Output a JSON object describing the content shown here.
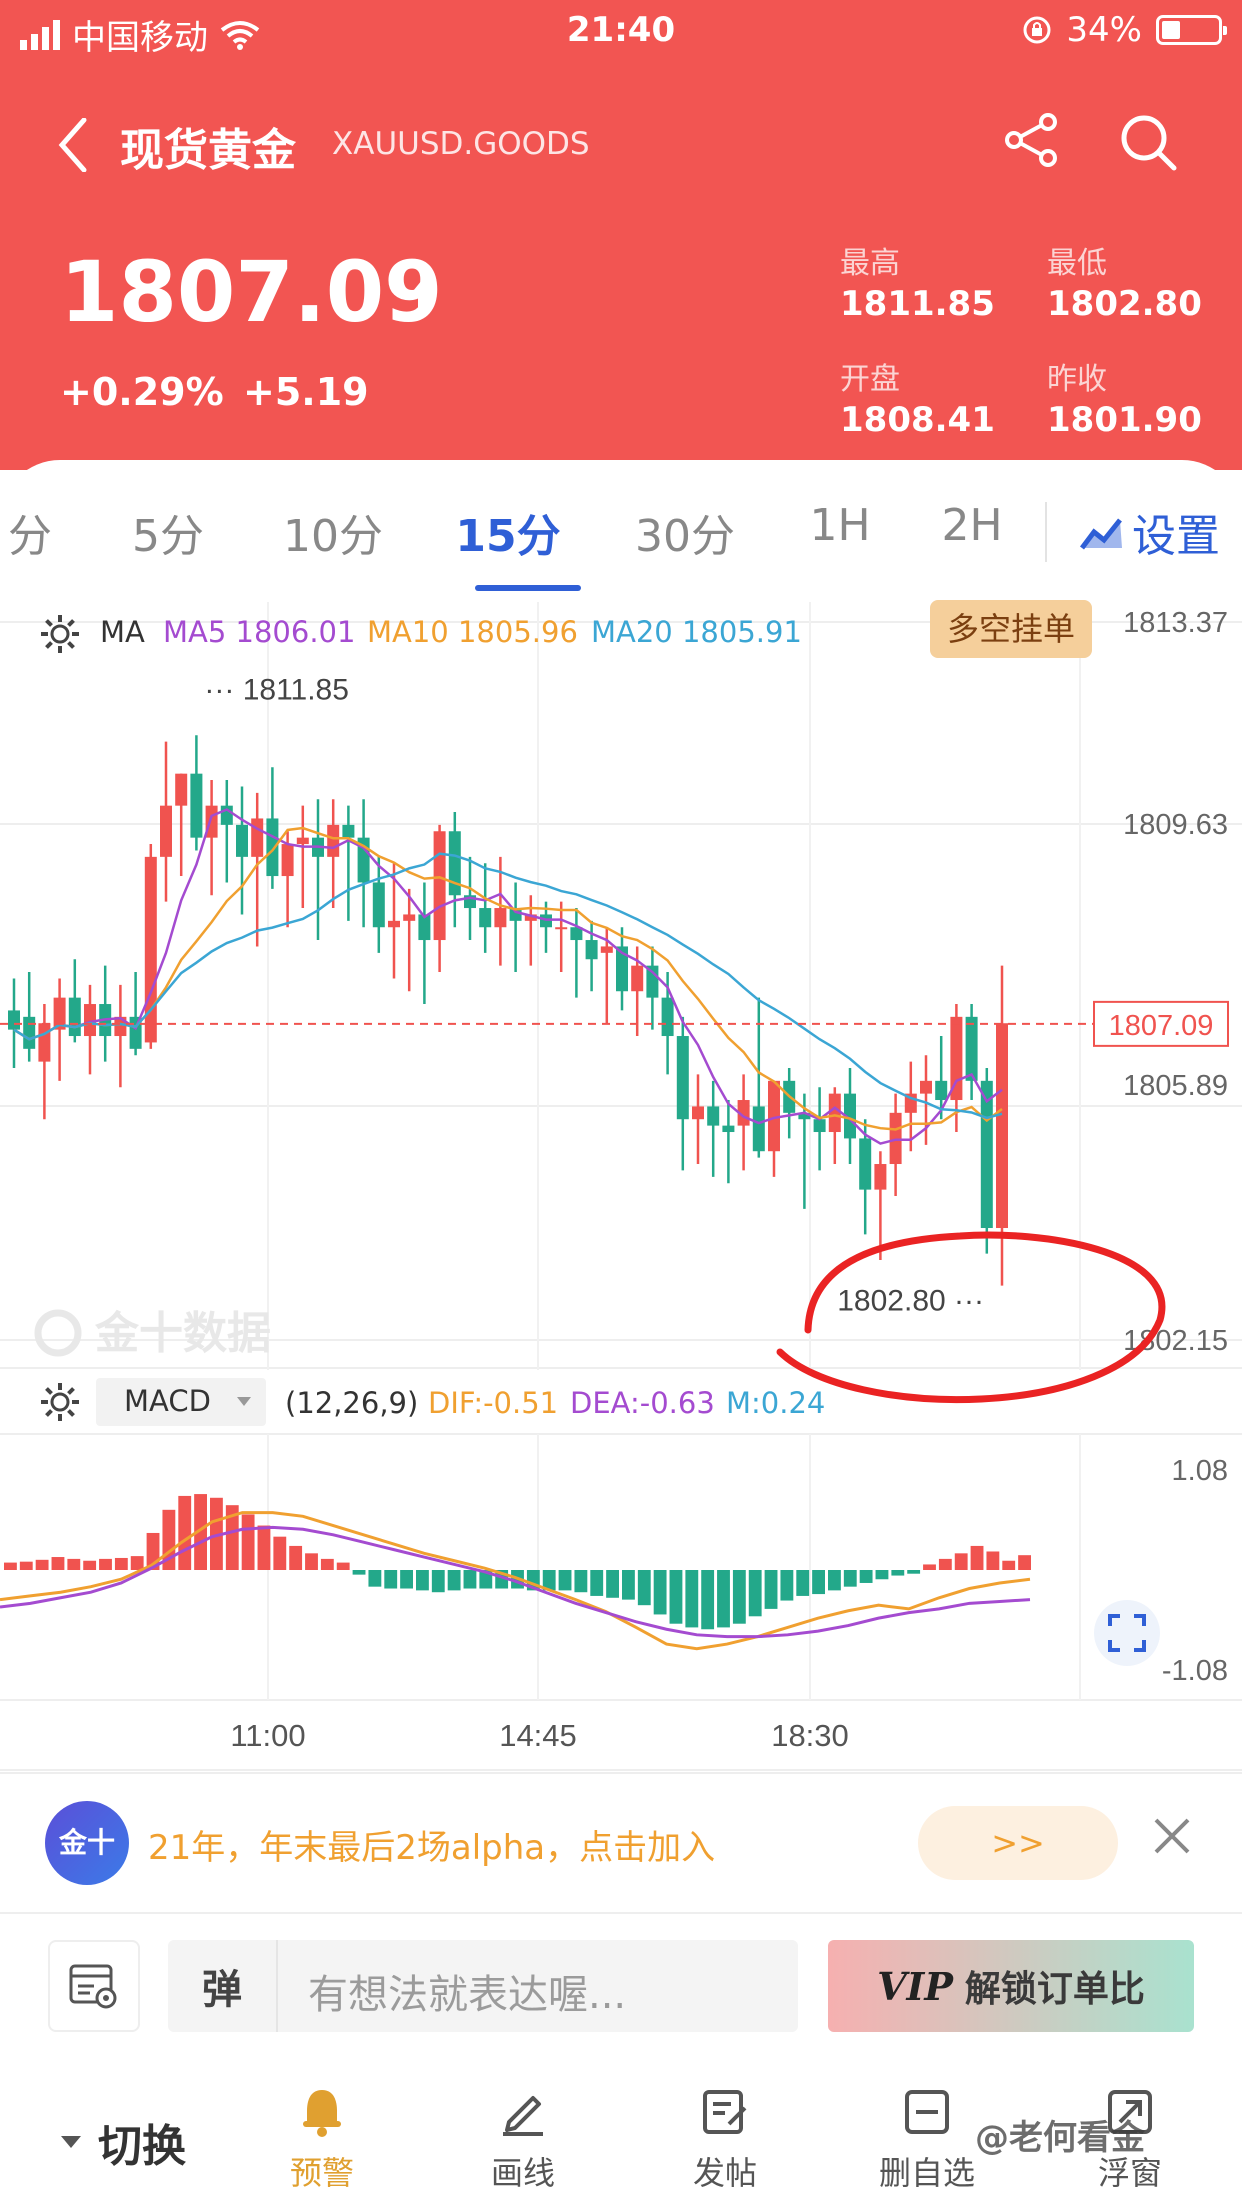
{
  "status_bar": {
    "carrier": "中国移动",
    "time": "21:40",
    "battery": "34%"
  },
  "header": {
    "title": "现货黄金",
    "code": "XAUUSD.GOODS",
    "price": "1807.09",
    "change_pct": "+0.29%",
    "change_abs": "+5.19",
    "stats": [
      {
        "label": "最高",
        "value": "1811.85"
      },
      {
        "label": "最低",
        "value": "1802.80"
      },
      {
        "label": "开盘",
        "value": "1808.41"
      },
      {
        "label": "昨收",
        "value": "1801.90"
      }
    ],
    "colors": {
      "background": "#f25552",
      "text": "#ffffff"
    }
  },
  "tabs": [
    {
      "label": "分"
    },
    {
      "label": "5分"
    },
    {
      "label": "10分"
    },
    {
      "label": "15分",
      "active": true
    },
    {
      "label": "30分"
    },
    {
      "label": "1H"
    },
    {
      "label": "2H"
    }
  ],
  "settings_label": "设置",
  "ma_legend": {
    "name": "MA",
    "ma5": "MA5 1806.01",
    "ma10": "MA10 1805.96",
    "ma20": "MA20 1805.91"
  },
  "order_button": "多空挂单",
  "price_axis": [
    "1813.37",
    "1809.63",
    "1805.89",
    "1802.15"
  ],
  "current_price_tag": "1807.09",
  "high_label": "1811.85",
  "low_label": "1802.80",
  "chart_watermark": "金十数据",
  "macd_legend": {
    "name": "MACD",
    "params": "(12,26,9)",
    "dif": "DIF:-0.51",
    "dea": "DEA:-0.63",
    "m": "M:0.24"
  },
  "macd_axis": [
    "1.08",
    "-1.08"
  ],
  "time_axis": [
    "11:00",
    "14:45",
    "18:30"
  ],
  "colors": {
    "up": "#f0534f",
    "down": "#23a88a",
    "ma5": "#a44bd0",
    "ma10": "#f0a030",
    "ma20": "#3ba6d4",
    "accent": "#2f5fd6"
  },
  "chart_data": [
    {
      "type": "candlestick",
      "title": "",
      "ylim": [
        1802.15,
        1813.37
      ],
      "y_ticks": [
        1813.37,
        1809.63,
        1805.89,
        1802.15
      ],
      "x_ticks": [
        "11:00",
        "14:45",
        "18:30"
      ],
      "last_price": 1807.09,
      "period_high": 1811.85,
      "period_low": 1802.8,
      "ohlc": [
        [
          1807.3,
          1807.8,
          1806.4,
          1807.0
        ],
        [
          1807.2,
          1807.9,
          1806.5,
          1806.7
        ],
        [
          1806.5,
          1807.4,
          1805.6,
          1807.1
        ],
        [
          1807.0,
          1807.8,
          1806.2,
          1807.5
        ],
        [
          1807.5,
          1808.1,
          1806.8,
          1806.9
        ],
        [
          1806.9,
          1807.7,
          1806.3,
          1807.4
        ],
        [
          1807.4,
          1808.0,
          1806.5,
          1806.9
        ],
        [
          1806.9,
          1807.7,
          1806.1,
          1807.2
        ],
        [
          1807.2,
          1807.9,
          1806.6,
          1806.7
        ],
        [
          1806.8,
          1809.9,
          1806.7,
          1809.7
        ],
        [
          1809.7,
          1811.5,
          1809.0,
          1810.5
        ],
        [
          1810.5,
          1811.0,
          1809.4,
          1811.0
        ],
        [
          1811.0,
          1811.6,
          1809.8,
          1810.0
        ],
        [
          1810.0,
          1810.9,
          1809.1,
          1810.5
        ],
        [
          1810.5,
          1810.9,
          1809.3,
          1810.2
        ],
        [
          1810.2,
          1810.8,
          1808.8,
          1809.7
        ],
        [
          1809.7,
          1810.7,
          1808.3,
          1810.3
        ],
        [
          1810.3,
          1811.1,
          1809.2,
          1809.4
        ],
        [
          1809.4,
          1810.1,
          1808.6,
          1809.9
        ],
        [
          1809.9,
          1810.5,
          1808.9,
          1810.0
        ],
        [
          1810.0,
          1810.6,
          1808.4,
          1809.7
        ],
        [
          1809.7,
          1810.6,
          1808.9,
          1810.2
        ],
        [
          1810.2,
          1810.5,
          1808.7,
          1810.0
        ],
        [
          1810.0,
          1810.6,
          1808.6,
          1809.3
        ],
        [
          1809.3,
          1809.7,
          1808.2,
          1808.6
        ],
        [
          1808.6,
          1809.6,
          1807.8,
          1808.7
        ],
        [
          1808.7,
          1809.2,
          1807.6,
          1808.8
        ],
        [
          1808.8,
          1809.3,
          1807.4,
          1808.4
        ],
        [
          1808.4,
          1810.2,
          1807.9,
          1810.1
        ],
        [
          1810.1,
          1810.4,
          1808.6,
          1809.1
        ],
        [
          1809.1,
          1809.7,
          1808.4,
          1808.9
        ],
        [
          1808.9,
          1809.6,
          1808.2,
          1808.6
        ],
        [
          1808.6,
          1809.7,
          1808.0,
          1808.9
        ],
        [
          1808.9,
          1809.3,
          1807.9,
          1808.7
        ],
        [
          1808.7,
          1809.1,
          1808.0,
          1808.8
        ],
        [
          1808.8,
          1809.0,
          1808.2,
          1808.6
        ],
        [
          1808.6,
          1809.0,
          1807.9,
          1808.6
        ],
        [
          1808.6,
          1808.9,
          1807.5,
          1808.4
        ],
        [
          1808.4,
          1808.7,
          1807.6,
          1808.1
        ],
        [
          1808.2,
          1808.6,
          1807.1,
          1808.3
        ],
        [
          1808.3,
          1808.6,
          1807.3,
          1807.6
        ],
        [
          1807.6,
          1808.3,
          1806.9,
          1808.0
        ],
        [
          1808.0,
          1808.3,
          1807.0,
          1807.5
        ],
        [
          1807.5,
          1807.9,
          1806.3,
          1806.9
        ],
        [
          1806.9,
          1807.2,
          1804.8,
          1805.6
        ],
        [
          1805.6,
          1806.3,
          1804.9,
          1805.8
        ],
        [
          1805.8,
          1806.2,
          1804.7,
          1805.5
        ],
        [
          1805.5,
          1805.9,
          1804.6,
          1805.4
        ],
        [
          1805.5,
          1806.3,
          1804.8,
          1805.9
        ],
        [
          1805.8,
          1807.5,
          1805.0,
          1805.1
        ],
        [
          1805.1,
          1806.1,
          1804.7,
          1806.2
        ],
        [
          1806.2,
          1806.4,
          1805.3,
          1805.7
        ],
        [
          1805.7,
          1806.0,
          1804.2,
          1805.6
        ],
        [
          1805.6,
          1806.1,
          1804.8,
          1805.4
        ],
        [
          1805.4,
          1806.1,
          1804.9,
          1806.0
        ],
        [
          1806.0,
          1806.4,
          1804.9,
          1805.3
        ],
        [
          1805.3,
          1805.6,
          1803.8,
          1804.5
        ],
        [
          1804.5,
          1805.1,
          1803.4,
          1804.9
        ],
        [
          1804.9,
          1806.0,
          1804.4,
          1805.7
        ],
        [
          1805.7,
          1806.5,
          1805.1,
          1806.0
        ],
        [
          1806.0,
          1806.6,
          1805.2,
          1806.2
        ],
        [
          1806.2,
          1806.9,
          1805.6,
          1805.9
        ],
        [
          1805.9,
          1807.4,
          1805.4,
          1807.2
        ],
        [
          1807.2,
          1807.4,
          1805.9,
          1806.2
        ],
        [
          1806.2,
          1806.4,
          1803.5,
          1803.9
        ],
        [
          1803.9,
          1808.0,
          1803.0,
          1807.1
        ]
      ]
    },
    {
      "type": "bar",
      "title": "",
      "ylim": [
        -1.08,
        1.08
      ],
      "y_ticks": [
        1.08,
        -1.08
      ],
      "series": [
        {
          "name": "M",
          "values": [
            0.08,
            0.09,
            0.11,
            0.14,
            0.12,
            0.1,
            0.12,
            0.13,
            0.15,
            0.4,
            0.65,
            0.8,
            0.82,
            0.78,
            0.7,
            0.6,
            0.48,
            0.36,
            0.26,
            0.18,
            0.12,
            0.08,
            -0.05,
            -0.18,
            -0.2,
            -0.2,
            -0.22,
            -0.24,
            -0.22,
            -0.2,
            -0.2,
            -0.2,
            -0.2,
            -0.22,
            -0.22,
            -0.22,
            -0.24,
            -0.28,
            -0.3,
            -0.32,
            -0.38,
            -0.48,
            -0.58,
            -0.62,
            -0.64,
            -0.62,
            -0.58,
            -0.5,
            -0.42,
            -0.33,
            -0.28,
            -0.26,
            -0.22,
            -0.18,
            -0.14,
            -0.1,
            -0.06,
            -0.04,
            0.06,
            0.12,
            0.18,
            0.26,
            0.2,
            0.1,
            0.16
          ]
        },
        {
          "name": "DIF",
          "values": [
            -0.32,
            -0.28,
            -0.24,
            -0.18,
            -0.1,
            0.05,
            0.3,
            0.52,
            0.62,
            0.62,
            0.58,
            0.48,
            0.38,
            0.28,
            0.18,
            0.1,
            0.02,
            -0.08,
            -0.2,
            -0.32,
            -0.45,
            -0.62,
            -0.8,
            -0.85,
            -0.8,
            -0.72,
            -0.62,
            -0.52,
            -0.44,
            -0.38,
            -0.42,
            -0.3,
            -0.2,
            -0.14,
            -0.1
          ]
        },
        {
          "name": "DEA",
          "values": [
            -0.4,
            -0.36,
            -0.3,
            -0.24,
            -0.14,
            0.02,
            0.2,
            0.36,
            0.44,
            0.46,
            0.44,
            0.38,
            0.3,
            0.22,
            0.14,
            0.06,
            -0.02,
            -0.12,
            -0.24,
            -0.36,
            -0.46,
            -0.56,
            -0.64,
            -0.7,
            -0.72,
            -0.72,
            -0.7,
            -0.66,
            -0.6,
            -0.52,
            -0.46,
            -0.42,
            -0.36,
            -0.34,
            -0.32
          ]
        }
      ]
    }
  ],
  "promo": {
    "logo": "金十",
    "text": "21年，年末最后2场alpha，点击加入",
    "button": ">>"
  },
  "comment_bar": {
    "badge": "弹",
    "placeholder": "有想法就表达喔...",
    "vip_logo": "VIP",
    "vip_text": "解锁订单比"
  },
  "bottom_nav": {
    "switch_label": "切换",
    "items": [
      {
        "label": "预警",
        "icon": "bell-icon",
        "active": true
      },
      {
        "label": "画线",
        "icon": "pen-icon"
      },
      {
        "label": "发帖",
        "icon": "edit-icon"
      },
      {
        "label": "删自选",
        "icon": "minus-box-icon"
      },
      {
        "label": "浮窗",
        "icon": "float-window-icon"
      }
    ]
  },
  "watermark": "@老何看金"
}
